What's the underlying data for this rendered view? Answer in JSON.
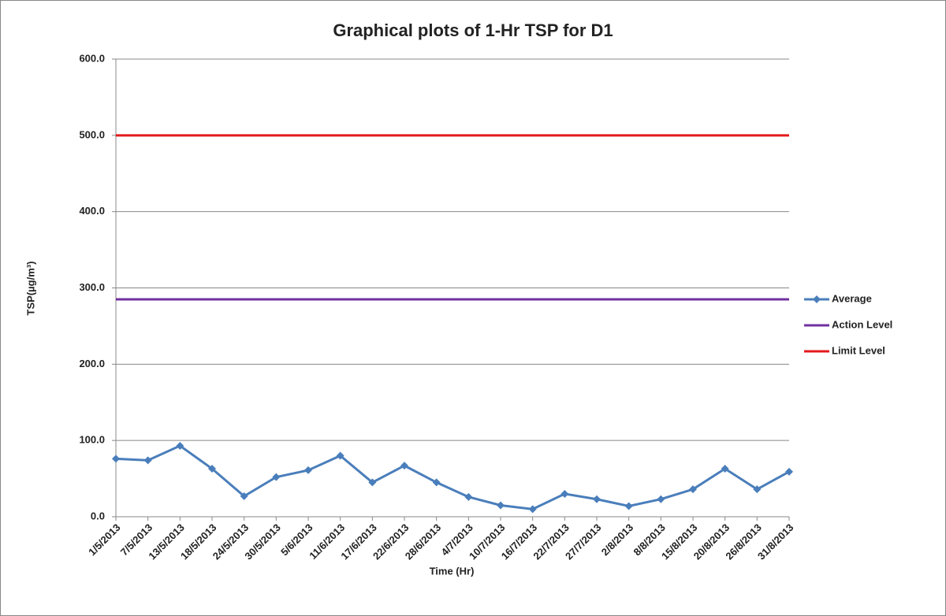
{
  "chart_data": {
    "type": "line",
    "title": "Graphical plots of 1-Hr TSP for D1",
    "x_label": "Time (Hr)",
    "y_label": "TSP(µg/m³)",
    "categories": [
      "1/5/2013",
      "7/5/2013",
      "13/5/2013",
      "18/5/2013",
      "24/5/2013",
      "30/5/2013",
      "5/6/2013",
      "11/6/2013",
      "17/6/2013",
      "22/6/2013",
      "28/6/2013",
      "4/7/2013",
      "10/7/2013",
      "16/7/2013",
      "22/7/2013",
      "27/7/2013",
      "2/8/2013",
      "8/8/2013",
      "15/8/2013",
      "20/8/2013",
      "26/8/2013",
      "31/8/2013"
    ],
    "series": [
      {
        "name": "Average",
        "color": "#4a7ebb",
        "marker": "diamond",
        "values": [
          76,
          74,
          93,
          63,
          27,
          52,
          61,
          80,
          45,
          67,
          45,
          26,
          15,
          10,
          30,
          23,
          14,
          23,
          36,
          63,
          36,
          59
        ]
      },
      {
        "name": "Action Level",
        "color": "#7030a0",
        "values": [
          285,
          285,
          285,
          285,
          285,
          285,
          285,
          285,
          285,
          285,
          285,
          285,
          285,
          285,
          285,
          285,
          285,
          285,
          285,
          285,
          285,
          285
        ]
      },
      {
        "name": "Limit Level",
        "color": "#e31a1c",
        "values": [
          500,
          500,
          500,
          500,
          500,
          500,
          500,
          500,
          500,
          500,
          500,
          500,
          500,
          500,
          500,
          500,
          500,
          500,
          500,
          500,
          500,
          500
        ]
      }
    ],
    "ylim": [
      0,
      600
    ],
    "yticks": [
      {
        "value": 0,
        "label": "0.0"
      },
      {
        "value": 100,
        "label": "100.0"
      },
      {
        "value": 200,
        "label": "200.0"
      },
      {
        "value": 300,
        "label": "300.0"
      },
      {
        "value": 400,
        "label": "400.0"
      },
      {
        "value": 500,
        "label": "500.0"
      },
      {
        "value": 600,
        "label": "600.0"
      }
    ],
    "grid": true,
    "legend": "right"
  }
}
